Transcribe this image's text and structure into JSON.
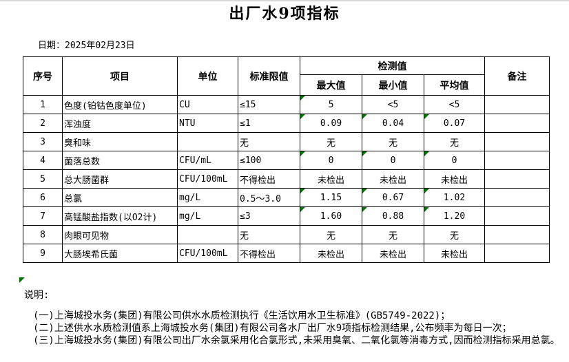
{
  "page": {
    "title": "出厂水9项指标",
    "date_label": "日期：",
    "date_value": "2025年02月23日"
  },
  "table": {
    "headers": {
      "no": "序号",
      "item": "项目",
      "unit": "单位",
      "limit": "标准限值",
      "detected_group": "检测值",
      "max": "最大值",
      "min": "最小值",
      "avg": "平均值",
      "remark": "备注"
    },
    "rows": [
      {
        "no": "1",
        "item": "色度(铂钴色度单位)",
        "unit": "CU",
        "limit": "≤15",
        "max": "5",
        "min": "<5",
        "avg": "<5",
        "remark": "",
        "flags": [
          "max"
        ]
      },
      {
        "no": "2",
        "item": "浑浊度",
        "unit": "NTU",
        "limit": "≤1",
        "max": "0.09",
        "min": "0.04",
        "avg": "0.07",
        "remark": "",
        "flags": [
          "max",
          "min",
          "avg"
        ]
      },
      {
        "no": "3",
        "item": "臭和味",
        "unit": "",
        "limit": "无",
        "max": "无",
        "min": "无",
        "avg": "无",
        "remark": "",
        "flags": []
      },
      {
        "no": "4",
        "item": "菌落总数",
        "unit": "CFU/mL",
        "limit": "≤100",
        "max": "0",
        "min": "0",
        "avg": "0",
        "remark": "",
        "flags": [
          "max",
          "min",
          "avg"
        ]
      },
      {
        "no": "5",
        "item": "总大肠菌群",
        "unit": "CFU/100mL",
        "limit": "不得检出",
        "max": "未检出",
        "min": "未检出",
        "avg": "未检出",
        "remark": "",
        "flags": []
      },
      {
        "no": "6",
        "item": "总氯",
        "unit": "mg/L",
        "limit": "0.5～3.0",
        "max": "1.15",
        "min": "0.67",
        "avg": "1.02",
        "remark": "",
        "flags": [
          "max",
          "min",
          "avg"
        ]
      },
      {
        "no": "7",
        "item": "高锰酸盐指数(以O2计)",
        "unit": "mg/L",
        "limit": "≤3",
        "max": "1.60",
        "min": "0.88",
        "avg": "1.20",
        "remark": "",
        "flags": [
          "max",
          "min",
          "avg"
        ]
      },
      {
        "no": "8",
        "item": "肉眼可见物",
        "unit": "",
        "limit": "无",
        "max": "无",
        "min": "无",
        "avg": "无",
        "remark": "",
        "flags": []
      },
      {
        "no": "9",
        "item": "大肠埃希氏菌",
        "unit": "CFU/100mL",
        "limit": "不得检出",
        "max": "未检出",
        "min": "未检出",
        "avg": "未检出",
        "remark": "",
        "flags": []
      }
    ]
  },
  "notes": {
    "heading": "说明:",
    "items": [
      "(一)上海城投水务(集团)有限公司供水水质检测执行《生活饮用水卫生标准》(GB5749-2022)；",
      "(二)上述供水水质检测值系上海城投水务(集团)有限公司各水厂出厂水9项指标检测结果,公布频率为每日一次；",
      "(三)上海城投水务(集团)有限公司出厂水余氯采用化合氯形式,未采用臭氧、二氧化氯等消毒方式,因而检测指标采用总氯。"
    ]
  },
  "colors": {
    "flag_green": "#007700",
    "border": "#000000",
    "top_line": "#d9d9d9"
  }
}
